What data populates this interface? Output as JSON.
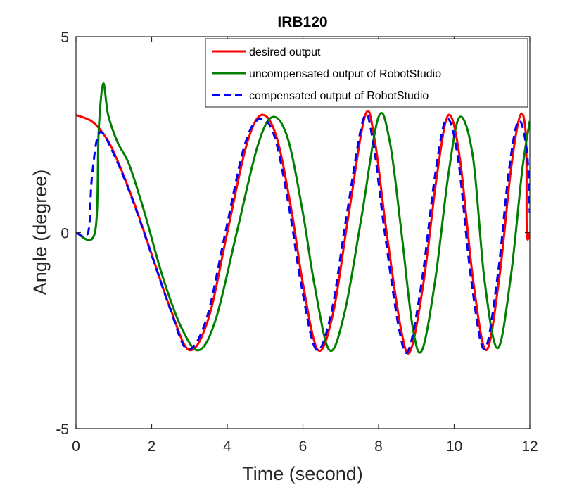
{
  "chart_data": {
    "type": "line",
    "title": "IRB120",
    "xlabel": "Time (second)",
    "ylabel": "Angle (degree)",
    "xlim": [
      0,
      12
    ],
    "ylim": [
      -5,
      5
    ],
    "x_ticks": [
      0,
      2,
      4,
      6,
      8,
      10,
      12
    ],
    "y_ticks": [
      -5,
      0,
      5
    ],
    "grid": false,
    "legend_position": "top-right",
    "series": [
      {
        "name": "desired output",
        "color": "#ff0000",
        "style": "solid",
        "points": [
          [
            0,
            3.0
          ],
          [
            0.4,
            2.85
          ],
          [
            0.7,
            2.55
          ],
          [
            1.0,
            2.05
          ],
          [
            1.5,
            0.85
          ],
          [
            2.0,
            -0.55
          ],
          [
            2.5,
            -1.95
          ],
          [
            3.0,
            -3.0
          ],
          [
            3.5,
            -2.2
          ],
          [
            4.0,
            0.0
          ],
          [
            4.5,
            2.2
          ],
          [
            4.9,
            3.0
          ],
          [
            5.3,
            2.45
          ],
          [
            5.7,
            0.55
          ],
          [
            6.0,
            -1.3
          ],
          [
            6.4,
            -3.0
          ],
          [
            6.8,
            -2.05
          ],
          [
            7.2,
            0.4
          ],
          [
            7.65,
            3.0
          ],
          [
            7.9,
            2.35
          ],
          [
            8.2,
            0.1
          ],
          [
            8.6,
            -2.5
          ],
          [
            8.85,
            -3.0
          ],
          [
            9.2,
            -1.2
          ],
          [
            9.55,
            1.5
          ],
          [
            9.85,
            3.0
          ],
          [
            10.15,
            1.9
          ],
          [
            10.5,
            -1.2
          ],
          [
            10.85,
            -3.0
          ],
          [
            11.2,
            -1.1
          ],
          [
            11.5,
            1.6
          ],
          [
            11.75,
            3.0
          ],
          [
            11.9,
            2.4
          ],
          [
            11.92,
            0
          ],
          [
            12.0,
            0
          ]
        ]
      },
      {
        "name": "uncompensated output of RobotStudio",
        "color": "#007f00",
        "style": "solid",
        "points": [
          [
            0,
            0
          ],
          [
            0.5,
            0
          ],
          [
            0.6,
            2.6
          ],
          [
            0.72,
            3.8
          ],
          [
            0.85,
            3.0
          ],
          [
            1.1,
            2.3
          ],
          [
            1.4,
            1.75
          ],
          [
            1.8,
            0.55
          ],
          [
            2.3,
            -1.15
          ],
          [
            2.8,
            -2.45
          ],
          [
            3.25,
            -3.0
          ],
          [
            3.7,
            -2.2
          ],
          [
            4.25,
            0.0
          ],
          [
            4.8,
            2.2
          ],
          [
            5.2,
            2.95
          ],
          [
            5.6,
            2.4
          ],
          [
            6.0,
            0.5
          ],
          [
            6.3,
            -1.3
          ],
          [
            6.7,
            -3.0
          ],
          [
            7.1,
            -2.05
          ],
          [
            7.55,
            0.4
          ],
          [
            8.0,
            2.95
          ],
          [
            8.3,
            2.3
          ],
          [
            8.6,
            0.05
          ],
          [
            8.9,
            -2.4
          ],
          [
            9.15,
            -3.0
          ],
          [
            9.5,
            -1.2
          ],
          [
            9.85,
            1.5
          ],
          [
            10.15,
            2.95
          ],
          [
            10.5,
            1.9
          ],
          [
            10.8,
            -1.2
          ],
          [
            11.15,
            -2.95
          ],
          [
            11.5,
            -1.1
          ],
          [
            11.8,
            1.6
          ],
          [
            12.0,
            2.85
          ]
        ]
      },
      {
        "name": "compensated output of RobotStudio",
        "color": "#0000ff",
        "style": "dashed",
        "points": [
          [
            0,
            0
          ],
          [
            0.32,
            0
          ],
          [
            0.42,
            1.4
          ],
          [
            0.62,
            2.55
          ],
          [
            1.0,
            2.0
          ],
          [
            1.5,
            0.82
          ],
          [
            2.0,
            -0.57
          ],
          [
            2.5,
            -1.97
          ],
          [
            2.95,
            -2.98
          ],
          [
            3.45,
            -2.2
          ],
          [
            3.95,
            0.0
          ],
          [
            4.45,
            2.2
          ],
          [
            4.85,
            2.9
          ],
          [
            5.25,
            2.45
          ],
          [
            5.65,
            0.55
          ],
          [
            5.95,
            -1.3
          ],
          [
            6.35,
            -2.98
          ],
          [
            6.75,
            -2.05
          ],
          [
            7.15,
            0.4
          ],
          [
            7.6,
            2.9
          ],
          [
            7.85,
            2.35
          ],
          [
            8.15,
            0.1
          ],
          [
            8.55,
            -2.5
          ],
          [
            8.8,
            -2.98
          ],
          [
            9.15,
            -1.2
          ],
          [
            9.5,
            1.5
          ],
          [
            9.8,
            2.9
          ],
          [
            10.1,
            1.9
          ],
          [
            10.45,
            -1.2
          ],
          [
            10.8,
            -2.98
          ],
          [
            11.15,
            -1.1
          ],
          [
            11.45,
            1.6
          ],
          [
            11.7,
            2.85
          ],
          [
            11.92,
            2.1
          ],
          [
            12.0,
            0.5
          ]
        ]
      }
    ]
  }
}
